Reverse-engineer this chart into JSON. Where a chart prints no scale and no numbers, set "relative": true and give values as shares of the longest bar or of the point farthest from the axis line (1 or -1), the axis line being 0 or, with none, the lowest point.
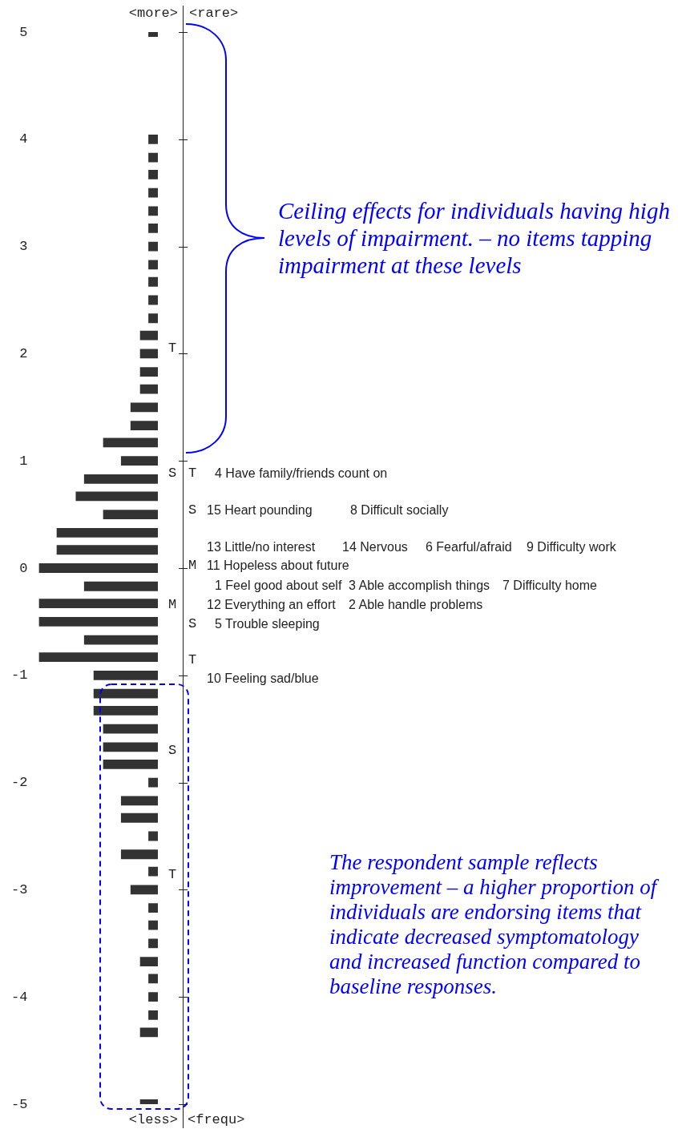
{
  "chart_data": {
    "type": "bar",
    "orientation": "horizontal",
    "relative": true,
    "color": "#333333",
    "x": [
      5,
      4,
      3.83,
      3.67,
      3.5,
      3.33,
      3.17,
      3,
      2.83,
      2.67,
      2.5,
      2.33,
      2.17,
      2,
      1.83,
      1.67,
      1.5,
      1.33,
      1.17,
      1,
      0.83,
      0.67,
      0.5,
      0.33,
      0.17,
      0,
      -0.17,
      -0.33,
      -0.5,
      -0.67,
      -0.83,
      -1,
      -1.17,
      -1.33,
      -1.5,
      -1.67,
      -1.83,
      -2,
      -2.17,
      -2.33,
      -2.5,
      -2.67,
      -2.83,
      -3,
      -3.17,
      -3.33,
      -3.5,
      -3.67,
      -3.83,
      -4,
      -4.17,
      -4.33,
      -5
    ],
    "values": [
      0.08,
      0.08,
      0.08,
      0.08,
      0.08,
      0.08,
      0.08,
      0.08,
      0.08,
      0.08,
      0.08,
      0.08,
      0.15,
      0.15,
      0.15,
      0.15,
      0.23,
      0.23,
      0.46,
      0.31,
      0.62,
      0.69,
      0.46,
      0.85,
      0.85,
      1,
      0.62,
      1,
      1,
      0.62,
      1,
      0.54,
      0.54,
      0.54,
      0.46,
      0.46,
      0.46,
      0.08,
      0.31,
      0.31,
      0.08,
      0.31,
      0.08,
      0.23,
      0.08,
      0.08,
      0.08,
      0.15,
      0.08,
      0.08,
      0.08,
      0.15,
      0.15
    ],
    "ylim": [
      -5,
      5
    ],
    "yticks": [
      -5,
      -4,
      -3,
      -2,
      -1,
      0,
      1,
      2,
      3,
      4,
      5
    ],
    "annotations": [
      "<more>",
      "<rare>",
      "T",
      "S",
      "M",
      "S",
      "T",
      "T",
      "4 Have family/friends count on",
      "S",
      "15 Heart pounding",
      "8 Difficult socially",
      "13 Little/no interest",
      "14 Nervous",
      "6 Fearful/afraid",
      "9 Difficulty work",
      "M",
      "11 Hopeless about future",
      "1 Feel good about self",
      "3 Able accomplish things",
      "7 Difficulty home",
      "12 Everything an effort",
      "2 Able handle problems",
      "S",
      "5 Trouble sleeping",
      "T",
      "10 Feeling sad/blue",
      "<less>",
      "<frequ>",
      "Ceiling effects for individuals having high levels of impairment. – no items tapping impairment at these levels",
      "The respondent sample reflects improvement – a higher proportion of individuals are endorsing items that indicate decreased symptomatology and increased function compared to baseline responses."
    ]
  }
}
